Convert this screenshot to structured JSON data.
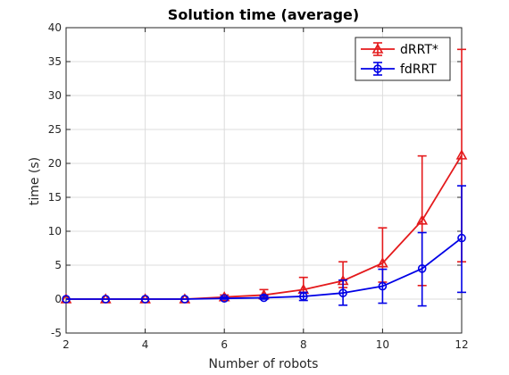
{
  "chart_data": {
    "type": "line",
    "title": "Solution time (average)",
    "xlabel": "Number of robots",
    "ylabel": "time (s)",
    "xlim": [
      2,
      12
    ],
    "ylim": [
      -5,
      40
    ],
    "x_ticks": [
      "2",
      "4",
      "6",
      "8",
      "10",
      "12"
    ],
    "y_ticks": [
      "-5",
      "0",
      "5",
      "10",
      "15",
      "20",
      "25",
      "30",
      "35",
      "40"
    ],
    "x_tick_values": [
      2,
      4,
      6,
      8,
      10,
      12
    ],
    "y_tick_values": [
      -5,
      0,
      5,
      10,
      15,
      20,
      25,
      30,
      35,
      40
    ],
    "grid": true,
    "legend_position": "top-right",
    "x": [
      2,
      3,
      4,
      5,
      6,
      7,
      8,
      9,
      10,
      11,
      12
    ],
    "series": [
      {
        "name": "dRRT*",
        "color": "#e41a1c",
        "marker": "triangle",
        "values": [
          0,
          0,
          0,
          0,
          0.3,
          0.6,
          1.4,
          2.7,
          5.3,
          11.6,
          21.2
        ],
        "error_low": [
          0,
          0,
          0,
          0,
          0.1,
          0.2,
          0.4,
          1.0,
          2.8,
          9.6,
          15.7
        ],
        "error_high": [
          0,
          0,
          0,
          0,
          0.3,
          0.8,
          1.8,
          2.8,
          5.2,
          9.5,
          15.6
        ]
      },
      {
        "name": "fdRRT",
        "color": "#0000e6",
        "marker": "circle",
        "values": [
          0,
          0,
          0,
          0,
          0.1,
          0.2,
          0.4,
          0.9,
          1.9,
          4.5,
          9.0
        ],
        "error_low": [
          0,
          0,
          0,
          0,
          0.1,
          0.2,
          0.6,
          1.8,
          2.5,
          5.5,
          8.0
        ],
        "error_high": [
          0,
          0,
          0,
          0,
          0.2,
          0.3,
          0.6,
          1.9,
          2.5,
          5.3,
          7.7
        ]
      }
    ]
  }
}
